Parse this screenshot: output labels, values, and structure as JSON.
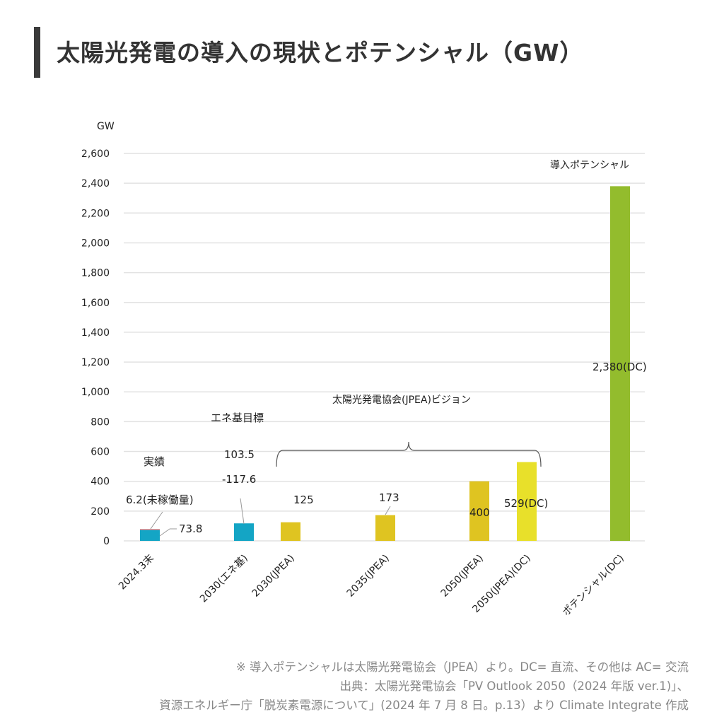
{
  "header": {
    "title": "太陽光発電の導入の現状とポテンシャル（GW）"
  },
  "chart_data": {
    "type": "bar",
    "title": "太陽光発電の導入の現状とポテンシャル（GW）",
    "ylabel": "GW",
    "ylim": [
      0,
      2600
    ],
    "yticks": [
      "0",
      "200",
      "400",
      "600",
      "800",
      "1,000",
      "1,200",
      "1,400",
      "1,600",
      "1,800",
      "2,000",
      "2,200",
      "2,400",
      "2,600"
    ],
    "grid": true,
    "categories": [
      "2024.3末",
      "2030(エネ基)",
      "2030(JPEA)",
      "2035(JPEA)",
      "2050(JPEA)",
      "2050(JPEA)(DC)",
      "ポテンシャル(DC)"
    ],
    "bars": [
      {
        "category": "2024.3末",
        "segments": [
          {
            "value": 73.8,
            "color": "#14a5c5"
          },
          {
            "value": 6.2,
            "color": "#f08080"
          }
        ]
      },
      {
        "category": "2030(エネ基)",
        "value": 117.6,
        "range": [
          103.5,
          117.6
        ],
        "color": "#14a5c5"
      },
      {
        "category": "2030(JPEA)",
        "value": 125,
        "color": "#dfc421"
      },
      {
        "category": "2035(JPEA)",
        "value": 173,
        "color": "#dfc421"
      },
      {
        "category": "2050(JPEA)",
        "value": 400,
        "color": "#dfc421"
      },
      {
        "category": "2050(JPEA)(DC)",
        "value": 529,
        "color": "#e8e02a"
      },
      {
        "category": "ポテンシャル(DC)",
        "value": 2380,
        "color": "#93bc2d"
      }
    ],
    "data_labels": {
      "actual_group": "実績",
      "unused": "6.2(未稼働量)",
      "actual": "73.8",
      "energy_plan_group": "エネ基目標",
      "energy_plan_low": "103.5",
      "energy_plan_high": "-117.6",
      "jpea_group": "太陽光発電協会(JPEA)ビジョン",
      "jpea_2030": "125",
      "jpea_2035": "173",
      "jpea_2050": "400",
      "jpea_2050_dc": "529(DC)",
      "potential_group": "導入ポテンシャル",
      "potential": "2,380(DC)"
    }
  },
  "footnotes": [
    "※ 導入ポテンシャルは太陽光発電協会（JPEA）より。DC= 直流、その他は AC= 交流",
    "出典：太陽光発電協会「PV Outlook 2050（2024 年版 ver.1)」、",
    "資源エネルギー庁「脱炭素電源について」(2024 年 7 月 8 日。p.13）より Climate Integrate 作成"
  ]
}
